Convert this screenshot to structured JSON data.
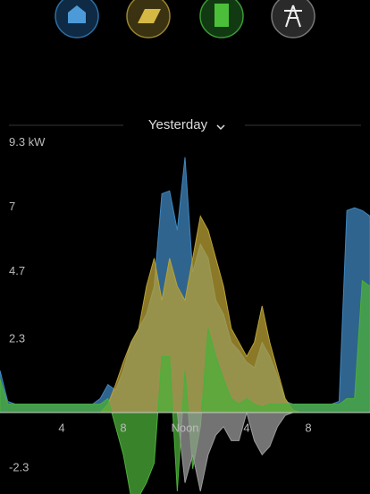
{
  "header": {
    "period": "Yesterday"
  },
  "chart_data": {
    "type": "area",
    "x": [
      0,
      0.5,
      1,
      1.5,
      2,
      2.5,
      3,
      3.5,
      4,
      4.5,
      5,
      5.5,
      6,
      6.5,
      7,
      7.5,
      8,
      8.5,
      9,
      9.5,
      10,
      10.5,
      11,
      11.5,
      12,
      12.5,
      13,
      13.5,
      14,
      14.5,
      15,
      15.5,
      16,
      16.5,
      17,
      17.5,
      18,
      18.5,
      19,
      19.5,
      20,
      20.5,
      21,
      21.5,
      22,
      22.5,
      23,
      23.5,
      24
    ],
    "xlim": [
      0,
      24
    ],
    "xticks": [
      4,
      8,
      {
        "value": 12,
        "label": "Noon"
      },
      {
        "value": 16,
        "label": "4"
      },
      {
        "value": 20,
        "label": "8"
      }
    ],
    "ylim": [
      -2.9,
      9.6
    ],
    "yticks": [
      {
        "value": -2.3,
        "label": "-2.3"
      },
      2.3,
      4.7,
      7,
      {
        "value": 9.3,
        "label": "9.3 kW"
      }
    ],
    "grid": false,
    "series": [
      {
        "color": "#3f86bd",
        "values": [
          1.5,
          0.4,
          0.3,
          0.3,
          0.3,
          0.3,
          0.3,
          0.3,
          0.3,
          0.3,
          0.3,
          0.3,
          0.3,
          0.5,
          1,
          0.8,
          1.5,
          2.5,
          3,
          3.5,
          4.5,
          7.8,
          7.9,
          6.5,
          9.1,
          5,
          6,
          5.5,
          4,
          3.5,
          2.5,
          2.2,
          1.8,
          1.6,
          2.5,
          2,
          1.3,
          0.4,
          0.3,
          0.3,
          0.3,
          0.3,
          0.3,
          0.3,
          0.4,
          7.2,
          7.3,
          7.2,
          7
        ]
      },
      {
        "color": "#b9a135",
        "values": [
          0,
          0,
          0,
          0,
          0,
          0,
          0,
          0,
          0,
          0,
          0,
          0,
          0,
          0,
          0.3,
          1,
          1.8,
          2.5,
          3,
          4.5,
          5.5,
          4,
          5.5,
          4.5,
          4,
          5.5,
          7,
          6.5,
          5.5,
          4.5,
          3,
          2.5,
          2,
          2.5,
          3.8,
          2.5,
          1.5,
          0.5,
          0.1,
          0,
          0,
          0,
          0,
          0,
          0,
          0,
          0,
          0,
          0
        ]
      },
      {
        "color": "#4caf3a",
        "values": [
          1.2,
          0.3,
          0.3,
          0.3,
          0.3,
          0.3,
          0.3,
          0.3,
          0.3,
          0.3,
          0.3,
          0.3,
          0.3,
          0.3,
          0.5,
          -0.5,
          -1.5,
          -3,
          -3,
          -2.5,
          -1.8,
          2,
          2,
          -2.8,
          1.5,
          -2,
          -0.5,
          3,
          2,
          1.2,
          0.5,
          0.3,
          0.5,
          0.3,
          0.2,
          0.3,
          0.3,
          0.3,
          0.3,
          0.3,
          0.3,
          0.3,
          0.3,
          0.3,
          0.3,
          0.5,
          0.5,
          4.7,
          4.5
        ]
      },
      {
        "color": "#9a9a9a",
        "values": [
          0,
          0,
          0,
          0,
          0,
          0,
          0,
          0,
          0,
          0,
          0,
          0,
          0,
          0,
          0,
          0,
          0,
          0,
          0,
          0,
          0,
          0,
          0,
          0,
          -2.5,
          -1.5,
          -2.8,
          -1.5,
          -0.8,
          -0.5,
          -1,
          -1,
          0,
          -1,
          -1.5,
          -1.2,
          -0.5,
          -0.1,
          0,
          0,
          0,
          0,
          0,
          0,
          0,
          0,
          0,
          0,
          0
        ]
      }
    ]
  }
}
